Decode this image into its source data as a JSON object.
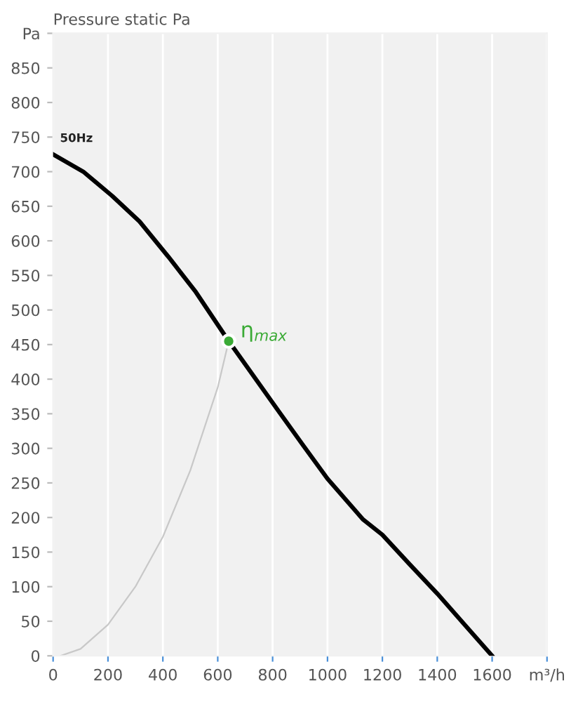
{
  "chart_data": {
    "type": "line",
    "title": "Pressure static Pa",
    "xlim": [
      0,
      1800
    ],
    "xticks": [
      0,
      200,
      400,
      600,
      800,
      1000,
      1200,
      1400,
      1600,
      {
        "value": 1800,
        "label": "m³/h"
      }
    ],
    "ylim": [
      0,
      900
    ],
    "yticks": [
      0,
      50,
      100,
      150,
      200,
      250,
      300,
      350,
      400,
      450,
      500,
      550,
      600,
      650,
      700,
      750,
      800,
      850,
      {
        "value": 900,
        "label": "Pa"
      }
    ],
    "grid": "x",
    "series": [
      {
        "name": "50Hz",
        "color": "#000000",
        "x": [
          0,
          110,
          215,
          315,
          420,
          520,
          640,
          825,
          910,
          1000,
          1130,
          1200,
          1300,
          1400,
          1500,
          1600
        ],
        "values": [
          725,
          700,
          665,
          628,
          577,
          526,
          455,
          352,
          305,
          256,
          197,
          175,
          132,
          90,
          45,
          0
        ]
      },
      {
        "color": "#c8c8c8",
        "x": [
          27,
          100,
          200,
          300,
          400,
          500,
          600,
          640
        ],
        "values": [
          0,
          10,
          45,
          100,
          172,
          268,
          388,
          455
        ]
      },
      {
        "type": "scatter",
        "color": "#3aaa35",
        "x": [
          640
        ],
        "values": [
          455
        ]
      }
    ],
    "annotations": [
      {
        "text": "η$_{max}$",
        "x": 640,
        "y": 455
      }
    ]
  }
}
